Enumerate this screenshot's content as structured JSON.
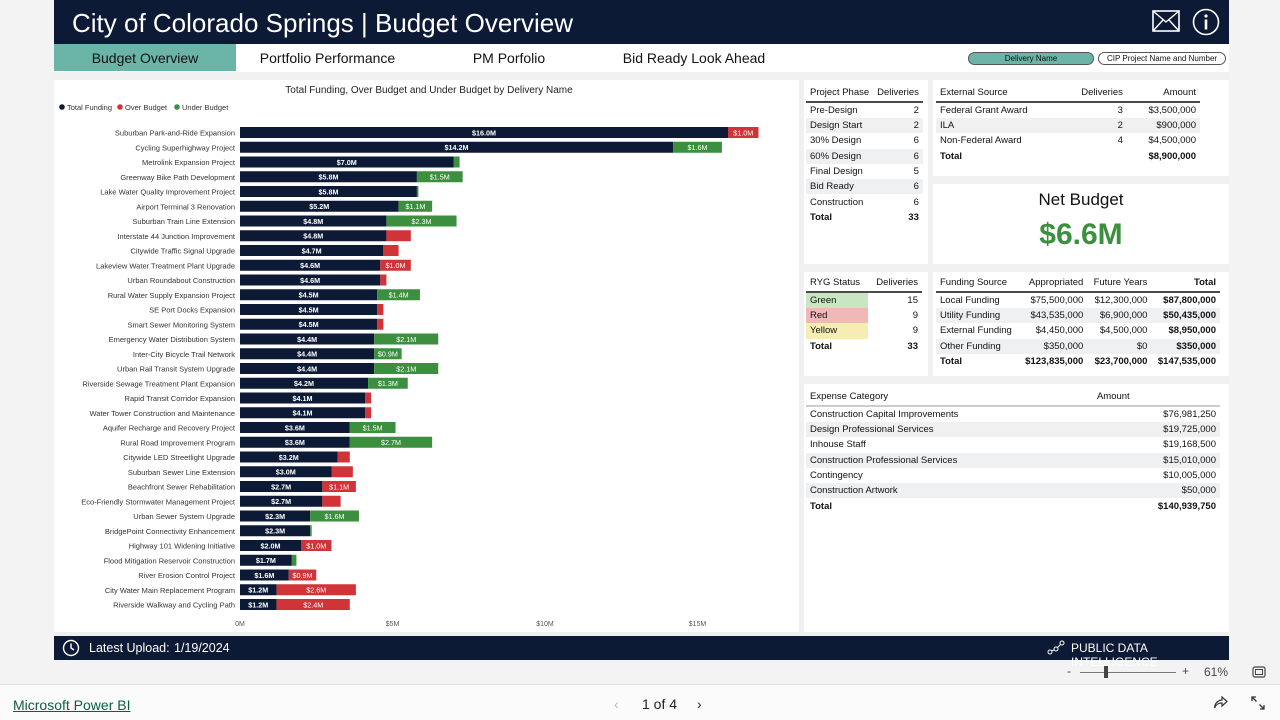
{
  "header": {
    "title": "City of Colorado Springs | Budget Overview",
    "mail_icon": "mail-icon",
    "info_icon": "info-icon"
  },
  "tabs": [
    {
      "label": "Budget Overview",
      "active": true
    },
    {
      "label": "Portfolio Performance",
      "active": false
    },
    {
      "label": "PM Porfolio",
      "active": false
    },
    {
      "label": "Bid Ready Look Ahead",
      "active": false
    }
  ],
  "slicers": {
    "delivery_name": "Delivery Name",
    "cip_project": "CIP Project Name and Number"
  },
  "chart_data": {
    "type": "bar",
    "orientation": "horizontal-stacked",
    "title": "Total Funding, Over Budget and Under Budget by Delivery Name",
    "legend": [
      "Total Funding",
      "Over Budget",
      "Under Budget"
    ],
    "legend_placement": "top-left",
    "colors": {
      "total": "#0c1a36",
      "over": "#d13438",
      "under": "#3b8f3e"
    },
    "xlim": [
      0,
      17
    ],
    "xticks": [
      "0M",
      "$5M",
      "$10M",
      "$15M"
    ],
    "xtick_values": [
      0,
      5,
      10,
      15
    ],
    "categories": [
      "Suburban Park-and-Ride Expansion",
      "Cycling Superhighway Project",
      "Metrolink Expansion Project",
      "Greenway Bike Path Development",
      "Lake Water Quality Improvement Project",
      "Airport Terminal 3 Renovation",
      "Suburban Train Line Extension",
      "Interstate 44 Junction Improvement",
      "Citywide Traffic Signal Upgrade",
      "Lakeview Water Treatment Plant Upgrade",
      "Urban Roundabout Construction",
      "Rural Water Supply Expansion Project",
      "SE Port Docks Expansion",
      "Smart Sewer Monitoring System",
      "Emergency Water Distribution System",
      "Inter-City Bicycle Trail Network",
      "Urban Rail Transit System Upgrade",
      "Riverside Sewage Treatment Plant Expansion",
      "Rapid Transit Corridor Expansion",
      "Water Tower Construction and Maintenance",
      "Aquifer Recharge and Recovery Project",
      "Rural Road Improvement Program",
      "Citywide LED Streetlight Upgrade",
      "Suburban Sewer Line Extension",
      "Beachfront Sewer Rehabilitation",
      "Eco-Friendly Stormwater Management Project",
      "Urban Sewer System Upgrade",
      "BridgePoint Connectivity Enhancement",
      "Highway 101 Widening Initiative",
      "Flood Mitigation Reservoir Construction",
      "River Erosion Control Project",
      "City Water Main Replacement Program",
      "Riverside Walkway and Cycling Path"
    ],
    "series": [
      {
        "name": "Total Funding",
        "values": [
          16.0,
          14.2,
          7.0,
          5.8,
          5.8,
          5.2,
          4.8,
          4.8,
          4.7,
          4.6,
          4.6,
          4.5,
          4.5,
          4.5,
          4.4,
          4.4,
          4.4,
          4.2,
          4.1,
          4.1,
          3.6,
          3.6,
          3.2,
          3.0,
          2.7,
          2.7,
          2.3,
          2.3,
          2.0,
          1.7,
          1.6,
          1.2,
          1.2
        ]
      },
      {
        "name": "Over Budget",
        "values": [
          1.0,
          0,
          0,
          0,
          0,
          0,
          0,
          0.8,
          0.5,
          1.0,
          0.2,
          0,
          0.2,
          0.2,
          0,
          0,
          0,
          0,
          0.2,
          0.2,
          0,
          0,
          0.4,
          0.7,
          1.1,
          0.6,
          0,
          0,
          1.0,
          0,
          0.9,
          2.6,
          2.4
        ]
      },
      {
        "name": "Under Budget",
        "values": [
          0,
          1.6,
          0.2,
          1.5,
          0.05,
          1.1,
          2.3,
          0,
          0,
          0,
          0,
          1.4,
          0,
          0,
          2.1,
          0.9,
          2.1,
          1.3,
          0,
          0,
          1.5,
          2.7,
          0,
          0,
          0,
          0,
          1.6,
          0.05,
          0,
          0.15,
          0,
          0,
          0
        ]
      }
    ],
    "data_labels": {
      "total": [
        "$16.0M",
        "$14.2M",
        "$7.0M",
        "$5.8M",
        "$5.8M",
        "$5.2M",
        "$4.8M",
        "$4.8M",
        "$4.7M",
        "$4.6M",
        "$4.6M",
        "$4.5M",
        "$4.5M",
        "$4.5M",
        "$4.4M",
        "$4.4M",
        "$4.4M",
        "$4.2M",
        "$4.1M",
        "$4.1M",
        "$3.6M",
        "$3.6M",
        "$3.2M",
        "$3.0M",
        "$2.7M",
        "$2.7M",
        "$2.3M",
        "$2.3M",
        "$2.0M",
        "$1.7M",
        "$1.6M",
        "$1.2M",
        "$1.2M"
      ],
      "over": [
        "$1.0M",
        "",
        "",
        "",
        "",
        "",
        "",
        "",
        "",
        "$1.0M",
        "",
        "",
        "",
        "",
        "",
        "",
        "",
        "",
        "",
        "",
        "",
        "",
        "",
        "",
        "$1.1M",
        "",
        "",
        "",
        "$1.0M",
        "",
        "$0.9M",
        "$2.6M",
        "$2.4M"
      ],
      "under": [
        "",
        "$1.6M",
        "",
        "$1.5M",
        "",
        "$1.1M",
        "$2.3M",
        "",
        "",
        "",
        "",
        "$1.4M",
        "",
        "",
        "$2.1M",
        "$0.9M",
        "$2.1M",
        "$1.3M",
        "",
        "",
        "$1.5M",
        "$2.7M",
        "",
        "",
        "",
        "",
        "$1.6M",
        "",
        "",
        "",
        "",
        "",
        ""
      ]
    }
  },
  "project_phase": {
    "headers": [
      "Project Phase",
      "Deliveries"
    ],
    "rows": [
      [
        "Pre-Design",
        "2"
      ],
      [
        "Design Start",
        "2"
      ],
      [
        "30% Design",
        "6"
      ],
      [
        "60% Design",
        "6"
      ],
      [
        "Final Design",
        "5"
      ],
      [
        "Bid Ready",
        "6"
      ],
      [
        "Construction",
        "6"
      ]
    ],
    "total": [
      "Total",
      "33"
    ]
  },
  "external_source": {
    "headers": [
      "External Source",
      "Deliveries",
      "Amount"
    ],
    "rows": [
      [
        "Federal Grant Award",
        "3",
        "$3,500,000"
      ],
      [
        "ILA",
        "2",
        "$900,000"
      ],
      [
        "Non-Federal Award",
        "4",
        "$4,500,000"
      ]
    ],
    "total": [
      "Total",
      "",
      "$8,900,000"
    ]
  },
  "net_budget": {
    "label": "Net Budget",
    "value": "$6.6M",
    "color": "#3b8f3e"
  },
  "ryg_status": {
    "headers": [
      "RYG Status",
      "Deliveries"
    ],
    "rows": [
      {
        "label": "Green",
        "count": "15",
        "color": "#c9e6c3"
      },
      {
        "label": "Red",
        "count": "9",
        "color": "#f2b8b8"
      },
      {
        "label": "Yellow",
        "count": "9",
        "color": "#f6edb3"
      }
    ],
    "total": [
      "Total",
      "33"
    ]
  },
  "funding_source": {
    "headers": [
      "Funding Source",
      "Appropriated",
      "Future Years",
      "Total"
    ],
    "rows": [
      [
        "Local Funding",
        "$75,500,000",
        "$12,300,000",
        "$87,800,000"
      ],
      [
        "Utility Funding",
        "$43,535,000",
        "$6,900,000",
        "$50,435,000"
      ],
      [
        "External Funding",
        "$4,450,000",
        "$4,500,000",
        "$8,950,000"
      ],
      [
        "Other Funding",
        "$350,000",
        "$0",
        "$350,000"
      ]
    ],
    "total": [
      "Total",
      "$123,835,000",
      "$23,700,000",
      "$147,535,000"
    ]
  },
  "expense_category": {
    "headers": [
      "Expense Category",
      "Amount"
    ],
    "rows": [
      [
        "Construction Capital Improvements",
        "$76,981,250"
      ],
      [
        "Design Professional Services",
        "$19,725,000"
      ],
      [
        "Inhouse Staff",
        "$19,168,500"
      ],
      [
        "Construction Professional Services",
        "$15,010,000"
      ],
      [
        "Contingency",
        "$10,005,000"
      ],
      [
        "Construction Artwork",
        "$50,000"
      ]
    ],
    "total": [
      "Total",
      "$140,939,750"
    ]
  },
  "footer": {
    "upload_label": "Latest Upload:",
    "upload_date": "1/19/2024",
    "brand": "PUBLIC DATA INTELLIGENCE"
  },
  "viewer": {
    "zoom_minus": "-",
    "zoom_plus": "+",
    "zoom": "61%",
    "page": "1 of 4",
    "product": "Microsoft Power BI"
  }
}
